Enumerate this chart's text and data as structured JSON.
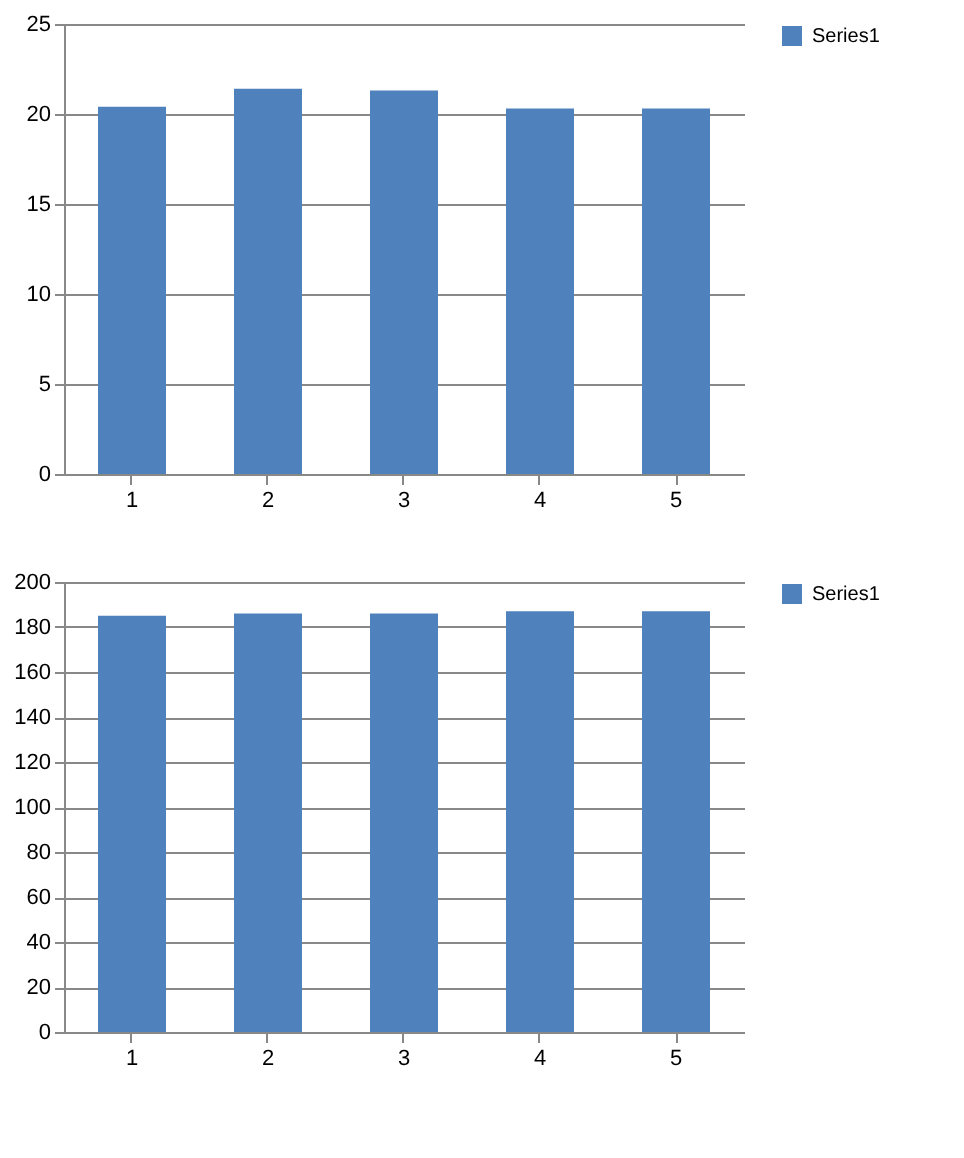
{
  "chart_data": [
    {
      "type": "bar",
      "categories": [
        "1",
        "2",
        "3",
        "4",
        "5"
      ],
      "series": [
        {
          "name": "Series1",
          "color": "#4f81bd",
          "values": [
            20.4,
            21.4,
            21.3,
            20.3,
            20.3
          ]
        }
      ],
      "ylim": [
        0,
        25
      ],
      "yticks": [
        0,
        5,
        10,
        15,
        20,
        25
      ],
      "grid": "y",
      "legend": "right"
    },
    {
      "type": "bar",
      "categories": [
        "1",
        "2",
        "3",
        "4",
        "5"
      ],
      "series": [
        {
          "name": "Series1",
          "color": "#4f81bd",
          "values": [
            185,
            186,
            186,
            187,
            187
          ]
        }
      ],
      "ylim": [
        0,
        200
      ],
      "yticks": [
        0,
        20,
        40,
        60,
        80,
        100,
        120,
        140,
        160,
        180,
        200
      ],
      "grid": "y",
      "legend": "right"
    }
  ]
}
